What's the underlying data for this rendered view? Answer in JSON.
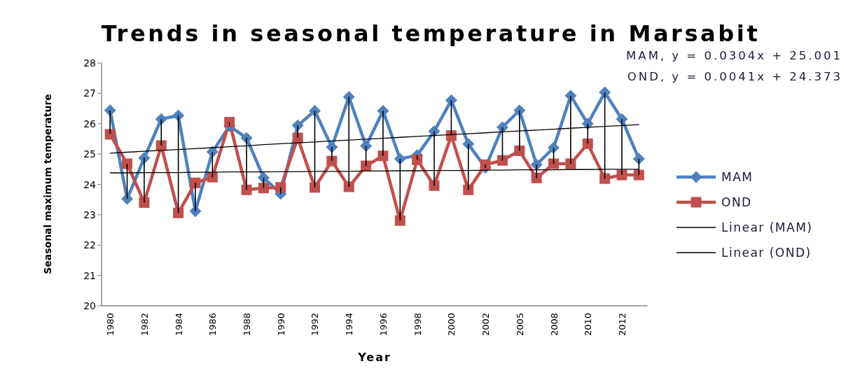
{
  "chart_data": {
    "type": "line",
    "title": "Trends in seasonal temperature in Marsabit",
    "xlabel": "Year",
    "ylabel": "Seasonal maximum temperature",
    "annotations": [
      "MAM, y = 0.0304x + 25.001",
      "OND, y = 0.0041x + 24.373"
    ],
    "categories": [
      "1980",
      null,
      "1982",
      null,
      "1984",
      null,
      "1986",
      null,
      "1988",
      null,
      "1990",
      null,
      "1992",
      null,
      "1994",
      null,
      "1996",
      null,
      "1998",
      null,
      "2000",
      null,
      "2002",
      null,
      "2005",
      null,
      "2008",
      null,
      "2010",
      null,
      "2012",
      null
    ],
    "ylim": [
      20,
      28
    ],
    "yticks": [
      20,
      21,
      22,
      23,
      24,
      25,
      26,
      27,
      28
    ],
    "legend": "right",
    "series": [
      {
        "name": "MAM",
        "color": "#4f81bd",
        "marker": "diamond",
        "values": [
          26.44,
          23.52,
          24.87,
          26.15,
          26.27,
          23.12,
          25.07,
          25.92,
          25.53,
          24.22,
          23.69,
          25.94,
          26.42,
          25.23,
          26.88,
          25.27,
          26.42,
          24.84,
          24.96,
          25.75,
          26.77,
          25.33,
          24.55,
          25.88,
          26.44,
          24.65,
          25.21,
          26.92,
          26.0,
          27.03,
          26.15,
          24.84
        ]
      },
      {
        "name": "OND",
        "color": "#c0504d",
        "marker": "square",
        "values": [
          25.65,
          24.68,
          23.4,
          25.28,
          23.06,
          24.05,
          24.24,
          26.05,
          23.82,
          23.88,
          23.9,
          25.53,
          23.9,
          24.77,
          23.92,
          24.61,
          24.94,
          22.81,
          24.81,
          23.96,
          25.61,
          23.82,
          24.65,
          24.79,
          25.11,
          24.21,
          24.68,
          24.68,
          25.34,
          24.19,
          24.31,
          24.31
        ],
        "errors": [
          [
            25.65,
            26.44
          ],
          [
            23.52,
            24.68
          ],
          [
            23.4,
            24.87
          ],
          [
            25.28,
            26.15
          ],
          [
            23.06,
            26.27
          ],
          [
            23.12,
            24.05
          ],
          [
            24.24,
            25.07
          ],
          [
            25.92,
            26.05
          ],
          [
            23.82,
            25.53
          ],
          [
            23.88,
            24.22
          ],
          [
            23.69,
            23.9
          ],
          [
            25.53,
            25.94
          ],
          [
            23.9,
            26.42
          ],
          [
            24.77,
            25.23
          ],
          [
            23.92,
            26.88
          ],
          [
            24.61,
            25.27
          ],
          [
            24.94,
            26.42
          ],
          [
            22.81,
            24.84
          ],
          [
            24.81,
            24.96
          ],
          [
            23.96,
            25.75
          ],
          [
            25.61,
            26.77
          ],
          [
            23.82,
            25.33
          ],
          [
            24.55,
            24.65
          ],
          [
            24.79,
            25.88
          ],
          [
            25.11,
            26.44
          ],
          [
            24.21,
            24.65
          ],
          [
            24.68,
            25.21
          ],
          [
            24.68,
            26.92
          ],
          [
            25.34,
            26.0
          ],
          [
            24.19,
            27.03
          ],
          [
            24.31,
            26.15
          ],
          [
            24.31,
            24.84
          ]
        ]
      },
      {
        "name": "Linear (MAM)",
        "type": "line",
        "color": "#000000",
        "marker": "none",
        "values": [
          25.03,
          25.06,
          25.09,
          25.12,
          25.15,
          25.18,
          25.21,
          25.24,
          25.27,
          25.31,
          25.34,
          25.37,
          25.4,
          25.43,
          25.46,
          25.49,
          25.52,
          25.55,
          25.58,
          25.61,
          25.64,
          25.67,
          25.7,
          25.73,
          25.76,
          25.79,
          25.82,
          25.85,
          25.88,
          25.91,
          25.94,
          25.97
        ]
      },
      {
        "name": "Linear (OND)",
        "type": "line",
        "color": "#000000",
        "marker": "none",
        "values": [
          24.38,
          24.38,
          24.39,
          24.39,
          24.39,
          24.4,
          24.4,
          24.41,
          24.41,
          24.41,
          24.42,
          24.42,
          24.43,
          24.43,
          24.43,
          24.44,
          24.44,
          24.45,
          24.45,
          24.46,
          24.46,
          24.46,
          24.47,
          24.47,
          24.48,
          24.48,
          24.48,
          24.49,
          24.49,
          24.5,
          24.5,
          24.5
        ]
      }
    ]
  }
}
